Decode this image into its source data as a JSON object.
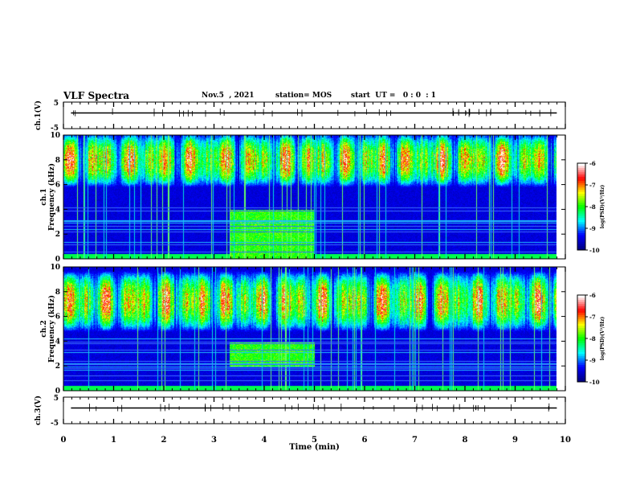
{
  "header": {
    "title": "VLF Spectra",
    "date": "Nov.5  , 2021",
    "station": "station= MOS",
    "start": "start  UT =   0 : 0  : 1"
  },
  "chart_data": [
    {
      "type": "line",
      "name": "ch1-waveform-panel",
      "ylabel": "ch.1(V)",
      "ylim": [
        -5,
        5
      ],
      "y_ticklabels": [
        "5",
        "-5"
      ],
      "xlim": [
        0,
        10
      ],
      "level": 0
    },
    {
      "type": "heatmap",
      "name": "ch1-spectrogram",
      "ylabel": "ch.1\nFrequency (kHz)",
      "ylabel_line1": "ch.1",
      "ylabel_line2": "Frequency (kHz)",
      "xlim": [
        0,
        9.83
      ],
      "ylim": [
        0,
        10
      ],
      "y_ticks": [
        0,
        2,
        4,
        6,
        8,
        10
      ],
      "features": {
        "chorus_band_khz": [
          6,
          10
        ],
        "enhanced_noise_interval_min": [
          3.3,
          5.0
        ],
        "enhanced_noise_band_khz": [
          0,
          4
        ]
      },
      "colorbar": {
        "label": "log(PSD)(V²/Hz)",
        "ticks": [
          -6,
          -7,
          -8,
          -9,
          -10
        ],
        "range": [
          -10,
          -6
        ],
        "colormap": [
          "#000080",
          "#0000ff",
          "#00ffff",
          "#00ff00",
          "#ffff00",
          "#ff0000",
          "#ffffff"
        ]
      }
    },
    {
      "type": "heatmap",
      "name": "ch2-spectrogram",
      "ylabel": "ch.2\nFrequency (kHz)",
      "ylabel_line1": "ch.2",
      "ylabel_line2": "Frequency (kHz)",
      "xlim": [
        0,
        9.83
      ],
      "ylim": [
        0,
        10
      ],
      "y_ticks": [
        0,
        2,
        4,
        6,
        8,
        10
      ],
      "features": {
        "chorus_band_khz": [
          5,
          9.5
        ],
        "enhanced_noise_interval_min": [
          3.3,
          5.0
        ],
        "enhanced_noise_band_khz": [
          2,
          4
        ]
      },
      "colorbar": {
        "label": "log(PSD)(V²/Hz)",
        "ticks": [
          -6,
          -7,
          -8,
          -9,
          -10
        ],
        "range": [
          -10,
          -6
        ],
        "colormap": [
          "#000080",
          "#0000ff",
          "#00ffff",
          "#00ff00",
          "#ffff00",
          "#ff0000",
          "#ffffff"
        ]
      }
    },
    {
      "type": "line",
      "name": "ch3-waveform-panel",
      "ylabel": "ch.3(V)",
      "ylim": [
        -5,
        5
      ],
      "y_ticklabels": [
        "5",
        "-5"
      ],
      "xlim": [
        0,
        10
      ],
      "level": 0
    }
  ],
  "x_axis": {
    "label": "Time  (min)",
    "ticks": [
      0,
      1,
      2,
      3,
      4,
      5,
      6,
      7,
      8,
      9,
      10
    ],
    "tick_labels": [
      "0",
      "1",
      "2",
      "3",
      "4",
      "5",
      "6",
      "7",
      "8",
      "9",
      "10"
    ],
    "range": [
      0,
      10
    ]
  }
}
